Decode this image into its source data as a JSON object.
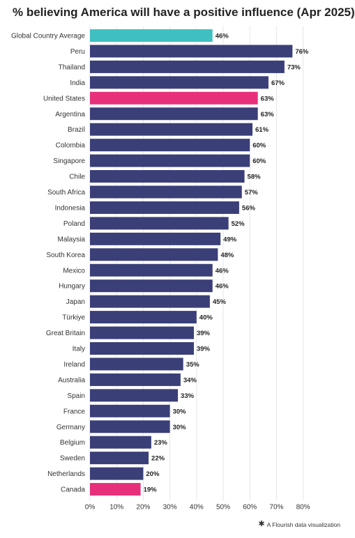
{
  "chart_data": {
    "type": "bar",
    "orientation": "horizontal",
    "title": "% believing America will have a positive influence (Apr 2025)",
    "categories": [
      "Global Country Average",
      "Peru",
      "Thailand",
      "India",
      "United States",
      "Argentina",
      "Brazil",
      "Colombia",
      "Singapore",
      "Chile",
      "South Africa",
      "Indonesia",
      "Poland",
      "Malaysia",
      "South Korea",
      "Mexico",
      "Hungary",
      "Japan",
      "Türkiye",
      "Great Britain",
      "Italy",
      "Ireland",
      "Australia",
      "Spain",
      "France",
      "Germany",
      "Belgium",
      "Sweden",
      "Netherlands",
      "Canada"
    ],
    "values": [
      46,
      76,
      73,
      67,
      63,
      63,
      61,
      60,
      60,
      58,
      57,
      56,
      52,
      49,
      48,
      46,
      46,
      45,
      40,
      39,
      39,
      35,
      34,
      33,
      30,
      30,
      23,
      22,
      20,
      19
    ],
    "value_labels": [
      "46%",
      "76%",
      "73%",
      "67%",
      "63%",
      "63%",
      "61%",
      "60%",
      "60%",
      "58%",
      "57%",
      "56%",
      "52%",
      "49%",
      "48%",
      "46%",
      "46%",
      "45%",
      "40%",
      "39%",
      "39%",
      "35%",
      "34%",
      "33%",
      "30%",
      "30%",
      "23%",
      "22%",
      "20%",
      "19%"
    ],
    "bar_colors": [
      "#3fbfbf",
      "#3a3f78",
      "#3a3f78",
      "#3a3f78",
      "#e8307a",
      "#3a3f78",
      "#3a3f78",
      "#3a3f78",
      "#3a3f78",
      "#3a3f78",
      "#3a3f78",
      "#3a3f78",
      "#3a3f78",
      "#3a3f78",
      "#3a3f78",
      "#3a3f78",
      "#3a3f78",
      "#3a3f78",
      "#3a3f78",
      "#3a3f78",
      "#3a3f78",
      "#3a3f78",
      "#3a3f78",
      "#3a3f78",
      "#3a3f78",
      "#3a3f78",
      "#3a3f78",
      "#3a3f78",
      "#3a3f78",
      "#e8307a"
    ],
    "xlim": [
      0,
      85
    ],
    "xticks": [
      0,
      10,
      20,
      30,
      40,
      50,
      60,
      70,
      80
    ],
    "xtick_labels": [
      "0%",
      "10%",
      "20%",
      "30%",
      "40%",
      "50%",
      "60%",
      "70%",
      "80%"
    ],
    "grid": "vertical",
    "xlabel": "",
    "ylabel": ""
  },
  "colors": {
    "default_bar": "#3a3f78",
    "average_bar": "#3fbfbf",
    "highlight_bar": "#e8307a",
    "gridline": "#e6e6e6"
  },
  "credit": {
    "icon": "flourish-star-icon",
    "text": "A Flourish data visualization"
  }
}
